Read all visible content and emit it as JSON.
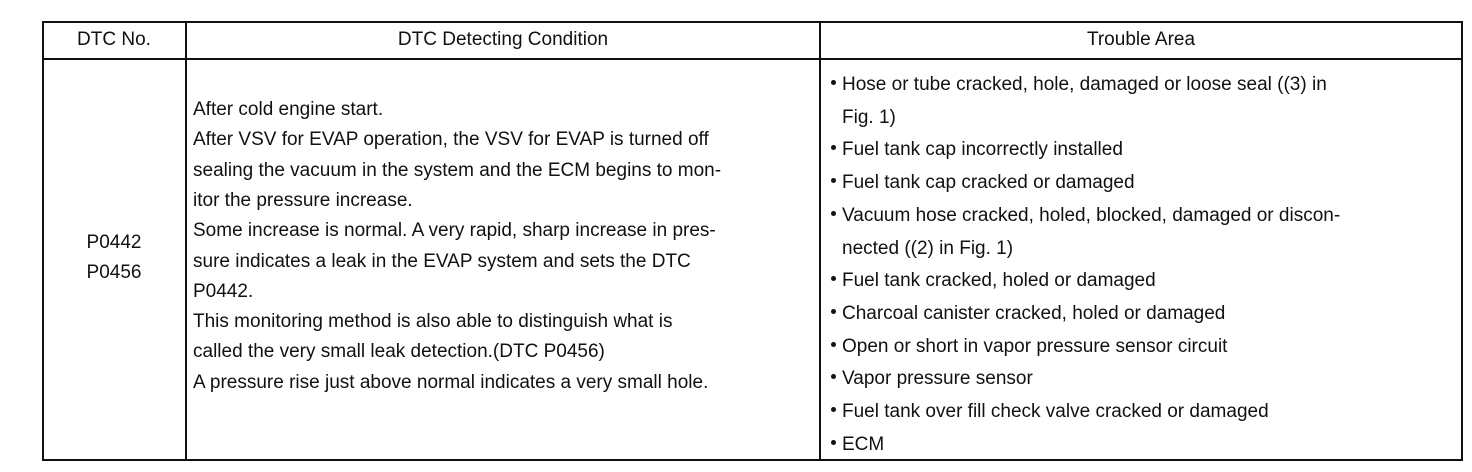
{
  "table": {
    "headers": [
      "DTC No.",
      "DTC Detecting Condition",
      "Trouble Area"
    ],
    "rows": [
      {
        "dtc": [
          "P0442",
          "P0456"
        ],
        "condition": [
          "After cold engine start.",
          "After VSV for EVAP operation, the VSV for EVAP is turned off",
          "sealing the vacuum in the system and the ECM begins to mon-",
          "itor the pressure increase.",
          "Some increase is normal. A very rapid, sharp increase in pres-",
          "sure indicates a leak in the EVAP system and sets the DTC",
          "P0442.",
          "This monitoring method is also able to distinguish what is",
          "called the very small leak detection.(DTC P0456)",
          "A pressure rise just above normal indicates a very small hole."
        ],
        "trouble_area": [
          [
            "Hose or tube cracked, hole, damaged or loose seal ((3) in",
            "Fig. 1)"
          ],
          [
            "Fuel tank cap incorrectly installed"
          ],
          [
            "Fuel tank cap cracked or damaged"
          ],
          [
            "Vacuum hose cracked, holed, blocked, damaged or discon-",
            "nected ((2) in Fig. 1)"
          ],
          [
            "Fuel tank cracked, holed or damaged"
          ],
          [
            "Charcoal canister cracked, holed or damaged"
          ],
          [
            "Open or short in vapor pressure sensor circuit"
          ],
          [
            "Vapor pressure sensor"
          ],
          [
            "Fuel tank over fill check valve cracked or damaged"
          ],
          [
            "ECM"
          ]
        ]
      }
    ]
  }
}
